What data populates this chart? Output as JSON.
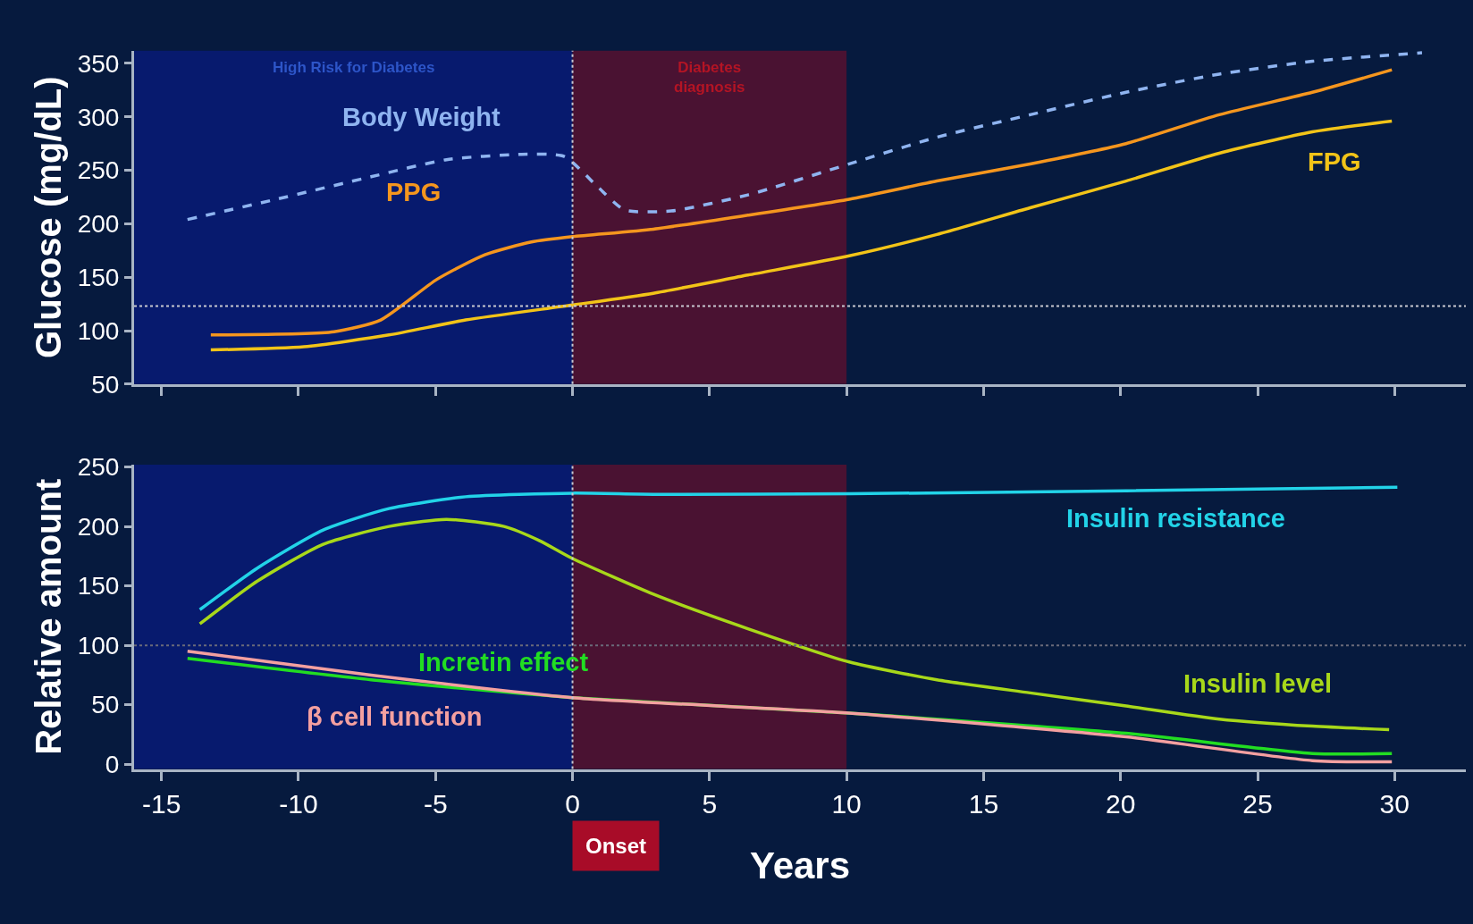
{
  "chart_data": [
    {
      "type": "line",
      "ylabel": "Glucose (mg/dL)",
      "xlim": [
        -16,
        32.6
      ],
      "xticks": [
        -15,
        -10,
        -5,
        0,
        5,
        10,
        15,
        20,
        25,
        30
      ],
      "ylim": [
        50,
        362
      ],
      "yticks": [
        50,
        100,
        150,
        200,
        250,
        300,
        350
      ],
      "tick_labels": "y",
      "grid": false,
      "marker": "none",
      "bands": [
        {
          "axis": "x",
          "from": -16,
          "to": 0,
          "label": "High Risk for Diabetes",
          "color": "#071a6e"
        },
        {
          "axis": "x",
          "from": 0,
          "to": 10,
          "label": "Diabetes\ndiagnosis",
          "color": "#4a1232"
        }
      ],
      "ref_lines": [
        {
          "axis": "y",
          "value": 123,
          "color": "#c8c8d0",
          "line_style": "dotted"
        },
        {
          "axis": "x",
          "value": 0,
          "color": "#c8c8d0",
          "line_style": "dotted"
        }
      ],
      "series": [
        {
          "name": "Body Weight",
          "color": "#8fb4f0",
          "line_style": "dashed",
          "x": [
            -14.05,
            -10.8,
            -7.35,
            -4.6,
            -1.86,
            -0.3,
            0.9,
            1.9,
            3.6,
            6.4,
            10.1,
            13.3,
            16.7,
            20.2,
            23.6,
            27,
            31
          ],
          "values": [
            204,
            223,
            244,
            260,
            265,
            263,
            235,
            213,
            212,
            227,
            256,
            281,
            302,
            323,
            340,
            352,
            360
          ]
        },
        {
          "name": "PPG",
          "color": "#f5961e",
          "line_style": "solid",
          "x": [
            -13.2,
            -8.7,
            -7,
            -4.95,
            -3.2,
            -1.5,
            0,
            2.95,
            6.4,
            10.1,
            13.3,
            16.7,
            20.2,
            23.6,
            27,
            29.9
          ],
          "values": [
            96,
            99,
            110,
            148,
            171,
            183,
            188,
            195,
            208,
            223,
            240,
            256,
            275,
            302,
            323,
            344
          ]
        },
        {
          "name": "FPG",
          "color": "#f2c418",
          "line_style": "solid",
          "x": [
            -13.2,
            -9.8,
            -6.7,
            -3.9,
            0,
            2.95,
            6.4,
            10.1,
            13.3,
            16.7,
            20.2,
            23.6,
            27,
            29.9
          ],
          "values": [
            82,
            85,
            96,
            110,
            124,
            135,
            152,
            170,
            190,
            215,
            240,
            266,
            286,
            296
          ]
        }
      ]
    },
    {
      "type": "line",
      "ylabel": "Relative amount",
      "xlabel": "Years",
      "xlim": [
        -16,
        32.6
      ],
      "xticks": [
        -15,
        -10,
        -5,
        0,
        5,
        10,
        15,
        20,
        25,
        30
      ],
      "ylim": [
        -4,
        252
      ],
      "yticks": [
        0,
        50,
        100,
        150,
        200,
        250
      ],
      "grid": false,
      "marker": "none",
      "bands": [
        {
          "axis": "x",
          "from": -16,
          "to": 0,
          "color": "#071a6e"
        },
        {
          "axis": "x",
          "from": 0,
          "to": 10,
          "color": "#4a1232"
        }
      ],
      "ref_lines": [
        {
          "axis": "y",
          "value": 100,
          "color": "#6a6a7a",
          "line_style": "dotted"
        },
        {
          "axis": "x",
          "value": 0,
          "color": "#c8c8d0",
          "line_style": "dotted"
        }
      ],
      "annotations": [
        "Onset"
      ],
      "series": [
        {
          "name": "Insulin resistance",
          "color": "#22d3e8",
          "line_style": "solid",
          "x": [
            -13.6,
            -11.5,
            -9.1,
            -6.7,
            -3.9,
            0,
            2.95,
            10.1,
            20.2,
            30.1
          ],
          "values": [
            130,
            165,
            197,
            215,
            225,
            228,
            227,
            227.5,
            230,
            233
          ]
        },
        {
          "name": "Insulin level",
          "color": "#a8d81a",
          "line_style": "solid",
          "x": [
            -13.6,
            -11.5,
            -9.1,
            -6.7,
            -4.6,
            -2.5,
            -1.2,
            0,
            2.95,
            6.4,
            10.1,
            13.3,
            16.7,
            20.2,
            23.6,
            27,
            29.8
          ],
          "values": [
            118,
            154,
            185,
            200,
            206,
            200,
            188,
            173,
            143,
            114,
            86,
            71,
            60,
            49,
            38,
            32,
            29
          ]
        },
        {
          "name": "Incretin effect",
          "color": "#22dd22",
          "line_style": "solid",
          "x": [
            -14.05,
            -7.35,
            0,
            10.1,
            20.2,
            27,
            29.9
          ],
          "values": [
            89,
            71,
            56,
            43,
            26,
            9,
            9
          ]
        },
        {
          "name": "β cell function",
          "color": "#f4a0a0",
          "line_style": "solid",
          "x": [
            -14.05,
            -7.35,
            0,
            10.1,
            20.2,
            27,
            29.9
          ],
          "values": [
            95,
            75,
            56,
            43,
            23,
            3,
            2
          ]
        }
      ]
    }
  ]
}
